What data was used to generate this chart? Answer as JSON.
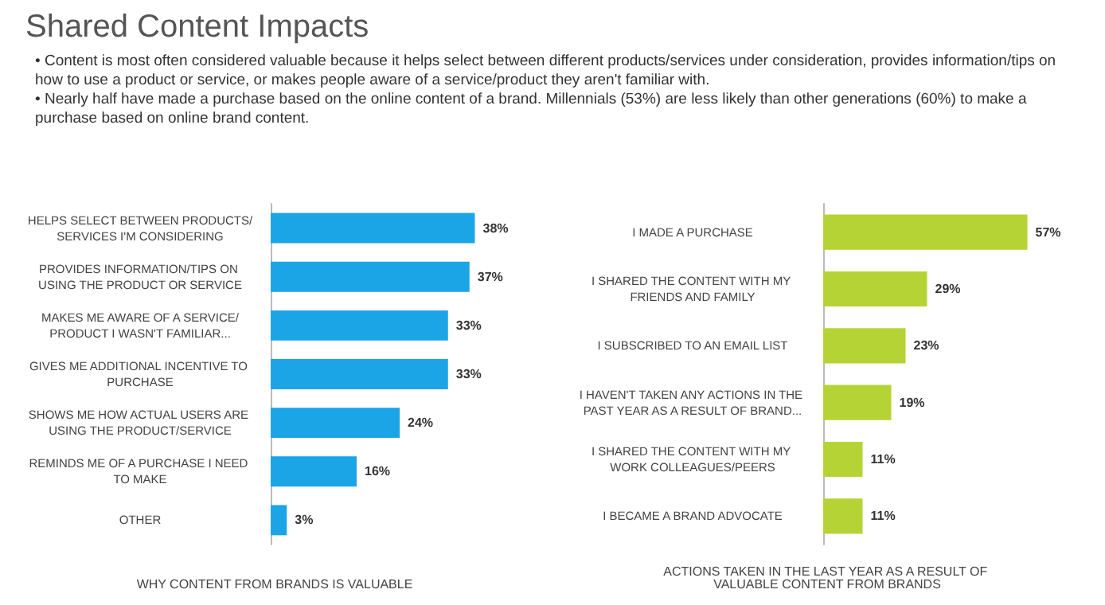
{
  "chart_data": [
    {
      "type": "bar",
      "orientation": "horizontal",
      "title": "Shared Content Impacts",
      "subtitle": "• Content is most often considered valuable because it helps select between different products/services under consideration, provides information/tips on how to use a product or service, or makes people aware of a service/product they aren't familiar with.\n• Nearly half have made a purchase based on the online content of a brand. Millennials (53%) are less likely than other generations (60%) to make a purchase based on online brand content.",
      "xlabel": "WHY CONTENT FROM BRANDS IS VALUABLE",
      "categories": [
        "HELPS SELECT BETWEEN PRODUCTS/SERVICES I'M CONSIDERING",
        "PROVIDES INFORMATION/TIPS ON USING THE PRODUCT OR SERVICE",
        "MAKES ME AWARE OF A SERVICE/PRODUCT I WASN'T FAMILIAR...",
        "GIVES ME ADDITIONAL INCENTIVE TO PURCHASE",
        "SHOWS ME HOW ACTUAL USERS ARE USING THE PRODUCT/SERVICE",
        "REMINDS ME OF A PURCHASE I NEED TO MAKE",
        "OTHER"
      ],
      "values": [
        38,
        37,
        33,
        33,
        24,
        16,
        3
      ],
      "value_labels": [
        "38%",
        "37%",
        "33%",
        "33%",
        "24%",
        "16%",
        "3%"
      ],
      "color": "#1ba5e6"
    },
    {
      "type": "bar",
      "orientation": "horizontal",
      "xlabel": "ACTIONS TAKEN IN THE LAST YEAR AS A RESULT OF VALUABLE CONTENT FROM BRANDS",
      "categories": [
        "I MADE A PURCHASE",
        "I SHARED THE CONTENT WITH MY FRIENDS AND FAMILY",
        "I SUBSCRIBED TO AN EMAIL LIST",
        "I HAVEN'T TAKEN ANY ACTIONS IN THE PAST YEAR AS A RESULT OF BRAND...",
        "I SHARED THE CONTENT WITH MY WORK COLLEAGUES/PEERS",
        "I BECAME A BRAND ADVOCATE"
      ],
      "values": [
        57,
        29,
        23,
        19,
        11,
        11
      ],
      "value_labels": [
        "57%",
        "29%",
        "23%",
        "19%",
        "11%",
        "11%"
      ],
      "color": "#b6d335"
    }
  ]
}
